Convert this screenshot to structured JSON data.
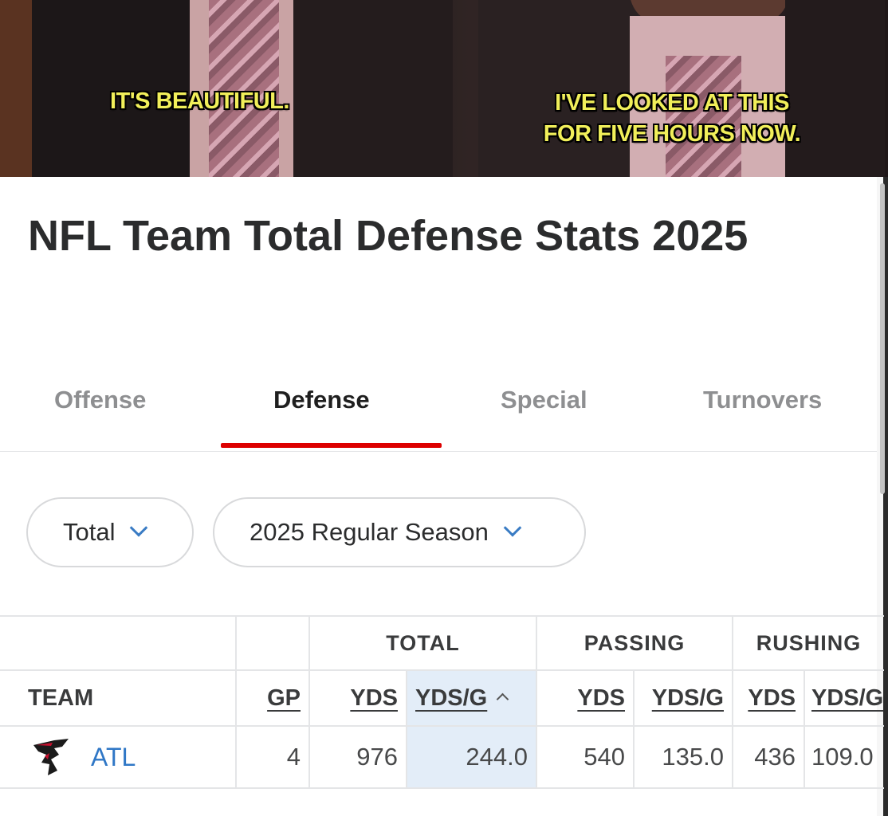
{
  "meme": {
    "caption_left": "IT'S BEAUTIFUL.",
    "caption_right_line1": "I'VE LOOKED AT THIS",
    "caption_right_line2": "FOR FIVE HOURS NOW."
  },
  "page": {
    "title": "NFL Team Total Defense Stats 2025"
  },
  "tabs": [
    {
      "label": "Offense",
      "active": false
    },
    {
      "label": "Defense",
      "active": true
    },
    {
      "label": "Special",
      "active": false
    },
    {
      "label": "Turnovers",
      "active": false
    }
  ],
  "filters": {
    "stat_type": "Total",
    "season": "2025 Regular Season"
  },
  "table": {
    "groups": {
      "total": "TOTAL",
      "passing": "PASSING",
      "rushing": "RUSHING"
    },
    "headers": {
      "team": "TEAM",
      "gp": "GP",
      "total_yds": "YDS",
      "total_ydsg": "YDS/G",
      "pass_yds": "YDS",
      "pass_ydsg": "YDS/G",
      "rush_yds": "YDS",
      "rush_ydsg": "YDS/G"
    },
    "rows": [
      {
        "team": "ATL",
        "gp": "4",
        "total_yds": "976",
        "total_ydsg": "244.0",
        "pass_yds": "540",
        "pass_ydsg": "135.0",
        "rush_yds": "436",
        "rush_ydsg": "109.0"
      }
    ]
  },
  "colors": {
    "accent_red": "#dd0000",
    "link_blue": "#2f77c6",
    "sorted_column_bg": "#e3edf8",
    "caption_yellow": "#f1ef5a"
  }
}
